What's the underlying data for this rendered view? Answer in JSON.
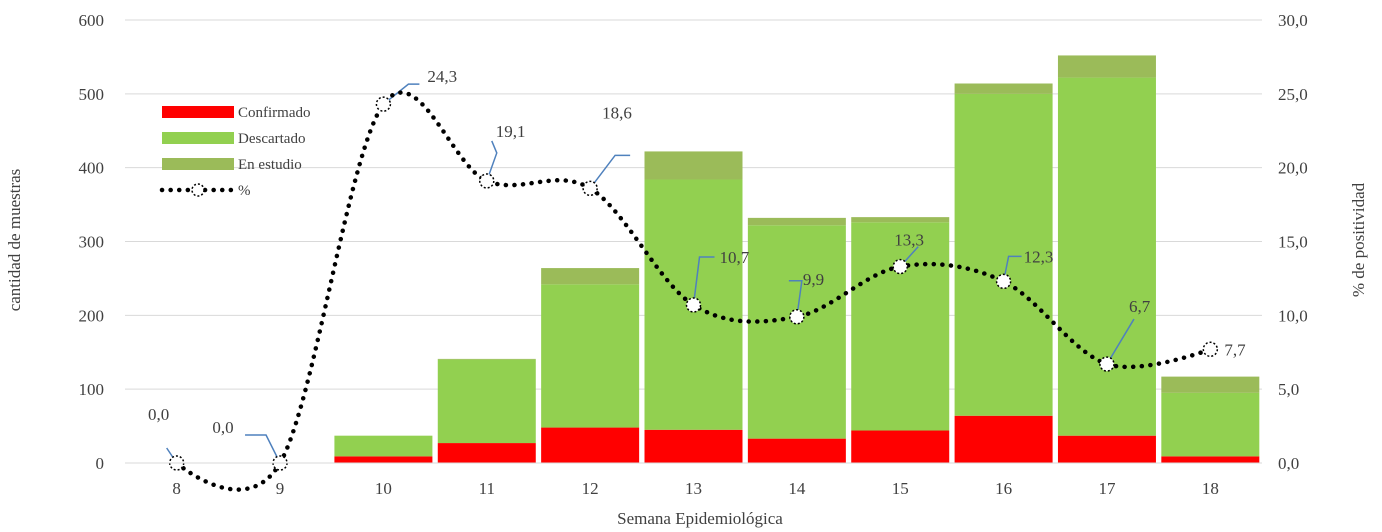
{
  "chart_data": {
    "type": "bar",
    "stacked": true,
    "categories": [
      "8",
      "9",
      "10",
      "11",
      "12",
      "13",
      "14",
      "15",
      "16",
      "17",
      "18"
    ],
    "series": [
      {
        "name": "Confirmado",
        "color": "#ff0000",
        "values": [
          0,
          0,
          9,
          27,
          48,
          45,
          33,
          44,
          64,
          37,
          9
        ]
      },
      {
        "name": "Descartado",
        "color": "#92d050",
        "values": [
          0,
          0,
          28,
          113,
          194,
          339,
          289,
          282,
          436,
          485,
          86
        ]
      },
      {
        "name": "En estudio",
        "color": "#9bbb59",
        "values": [
          0,
          0,
          0,
          1,
          22,
          38,
          10,
          7,
          14,
          30,
          22
        ]
      }
    ],
    "line_series": {
      "name": "%",
      "axis": "right",
      "values": [
        0.0,
        0.0,
        24.3,
        19.1,
        18.6,
        10.7,
        9.9,
        13.3,
        12.3,
        6.7,
        7.7
      ],
      "labels": [
        "0,0",
        "0,0",
        "24,3",
        "19,1",
        "18,6",
        "10,7",
        "9,9",
        "13,3",
        "12,3",
        "6,7",
        "7,7"
      ]
    },
    "xlabel": "Semana Epidemiológica",
    "ylabel": "cantidad de muestras",
    "y2label": "% de positividad",
    "ylim": [
      0,
      600
    ],
    "y2lim": [
      0,
      30
    ],
    "yticks": [
      "0",
      "100",
      "200",
      "300",
      "400",
      "500",
      "600"
    ],
    "y2ticks": [
      "0,0",
      "5,0",
      "10,0",
      "15,0",
      "20,0",
      "25,0",
      "30,0"
    ],
    "grid": true,
    "legend_position": "top-left"
  }
}
